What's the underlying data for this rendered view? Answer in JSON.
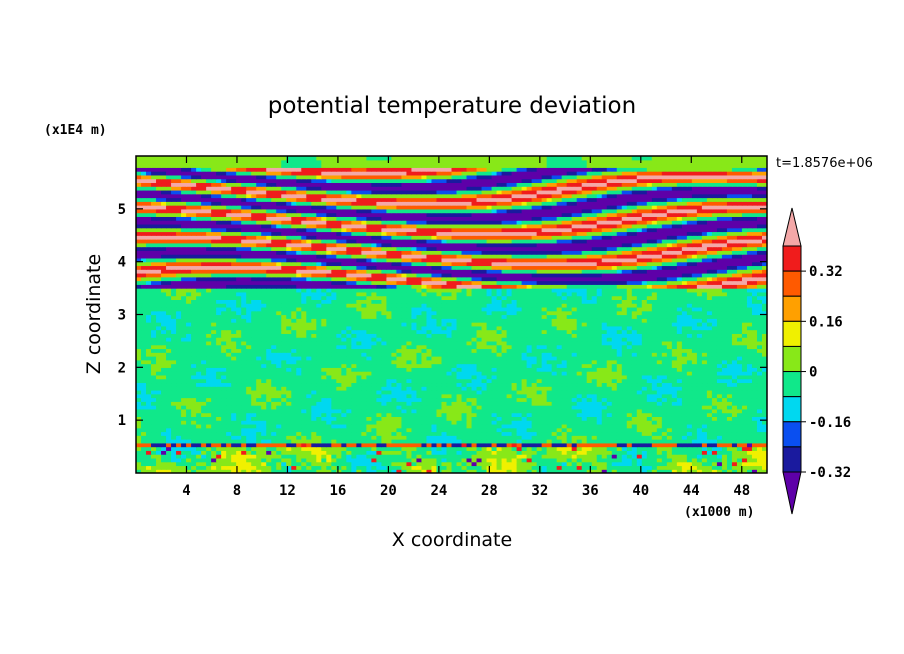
{
  "chart_data": {
    "type": "heatmap",
    "title": "potential temperature deviation",
    "xlabel": "X coordinate",
    "ylabel": "Z coordinate",
    "x_unit": "(x1000 m)",
    "y_unit": "(x1E4 m)",
    "time_label": "t=1.8576e+06",
    "xlim": [
      0,
      50
    ],
    "ylim": [
      0,
      6
    ],
    "x_ticks": [
      4,
      8,
      12,
      16,
      20,
      24,
      28,
      32,
      36,
      40,
      44,
      48
    ],
    "y_ticks": [
      1,
      2,
      3,
      4,
      5
    ],
    "colorbar": {
      "levels": [
        -0.4,
        -0.32,
        -0.24,
        -0.16,
        -0.08,
        0,
        0.08,
        0.16,
        0.24,
        0.32,
        0.4
      ],
      "labels": [
        "0.32",
        "0.16",
        "0",
        "-0.16",
        "-0.32"
      ],
      "colors": [
        "#5e00a8",
        "#1a1a9e",
        "#0a4ff0",
        "#00d8f0",
        "#10e88a",
        "#88e818",
        "#f0f000",
        "#ffa000",
        "#ff5a00",
        "#f01c1c",
        "#f4a8a8"
      ]
    },
    "regions": [
      {
        "description": "lower boundary layer, mixed",
        "y_range": [
          0,
          0.6
        ],
        "dominant_values": [
          -0.08,
          0.08
        ],
        "extremes": [
          -0.4,
          0.4
        ]
      },
      {
        "description": "near-neutral interior",
        "y_range": [
          0.6,
          3.5
        ],
        "dominant_values": [
          -0.08,
          0.0
        ]
      },
      {
        "description": "alternating strong bands",
        "y_range": [
          3.5,
          5.8
        ],
        "band_values": [
          -0.4,
          0.4,
          -0.4,
          0.4,
          -0.4,
          0.4,
          -0.4,
          0.4
        ]
      },
      {
        "description": "top layer",
        "y_range": [
          5.8,
          6.0
        ],
        "dominant_values": [
          0.0
        ]
      }
    ]
  }
}
